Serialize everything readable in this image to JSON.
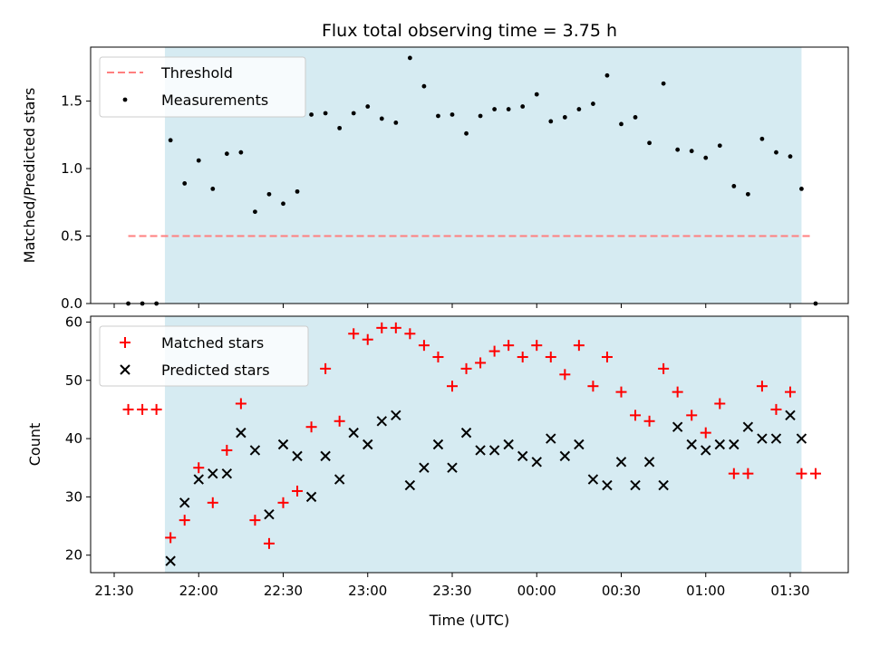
{
  "chart_data": [
    {
      "type": "scatter",
      "title": "Flux total observing time = 3.75 h",
      "xlabel": "",
      "ylabel": "Matched/Predicted stars",
      "ylim": [
        0,
        1.9
      ],
      "yticks": [
        "0.0",
        "0.5",
        "1.0",
        "1.5"
      ],
      "ytick_values": [
        0,
        0.5,
        1.0,
        1.5
      ],
      "legend_position": "top-left",
      "shaded_region": {
        "x_start": "21:48",
        "x_end": "01:34",
        "color": "#add8e6"
      },
      "threshold": {
        "name": "Threshold",
        "value": 0.5,
        "x_start": "21:35",
        "x_end": "01:38",
        "color": "#ff7f7f"
      },
      "series": [
        {
          "name": "Measurements",
          "color": "#000000",
          "x": [
            "21:35",
            "21:40",
            "21:45",
            "21:50",
            "21:55",
            "22:00",
            "22:05",
            "22:10",
            "22:15",
            "22:20",
            "22:25",
            "22:30",
            "22:35",
            "22:40",
            "22:45",
            "22:50",
            "22:55",
            "23:00",
            "23:05",
            "23:10",
            "23:15",
            "23:20",
            "23:25",
            "23:30",
            "23:35",
            "23:40",
            "23:45",
            "23:50",
            "23:55",
            "00:00",
            "00:05",
            "00:10",
            "00:15",
            "00:20",
            "00:25",
            "00:30",
            "00:35",
            "00:40",
            "00:45",
            "00:50",
            "00:55",
            "01:00",
            "01:05",
            "01:10",
            "01:15",
            "01:20",
            "01:25",
            "01:30",
            "01:34",
            "01:39"
          ],
          "y": [
            0,
            0,
            0,
            1.21,
            0.89,
            1.06,
            0.85,
            1.11,
            1.12,
            0.68,
            0.81,
            0.74,
            0.83,
            1.4,
            1.41,
            1.3,
            1.41,
            1.46,
            1.37,
            1.34,
            1.82,
            1.61,
            1.39,
            1.4,
            1.26,
            1.39,
            1.44,
            1.44,
            1.46,
            1.55,
            1.35,
            1.38,
            1.44,
            1.48,
            1.69,
            1.33,
            1.38,
            1.19,
            1.63,
            1.14,
            1.13,
            1.08,
            1.17,
            0.87,
            0.81,
            1.22,
            1.12,
            1.09,
            0.85,
            0
          ]
        }
      ]
    },
    {
      "type": "scatter",
      "title": "",
      "xlabel": "Time (UTC)",
      "ylabel": "Count",
      "ylim": [
        17,
        61
      ],
      "yticks": [
        "20",
        "30",
        "40",
        "50",
        "60"
      ],
      "ytick_values": [
        20,
        30,
        40,
        50,
        60
      ],
      "xticks": [
        "21:30",
        "22:00",
        "22:30",
        "23:00",
        "23:30",
        "00:00",
        "00:30",
        "01:00",
        "01:30"
      ],
      "legend_position": "top-left",
      "shaded_region": {
        "x_start": "21:48",
        "x_end": "01:34",
        "color": "#add8e6"
      },
      "series": [
        {
          "name": "Matched stars",
          "marker": "+",
          "color": "#ff0000",
          "x": [
            "21:35",
            "21:40",
            "21:45",
            "21:50",
            "21:55",
            "22:00",
            "22:05",
            "22:10",
            "22:15",
            "22:20",
            "22:25",
            "22:30",
            "22:35",
            "22:40",
            "22:45",
            "22:50",
            "22:55",
            "23:00",
            "23:05",
            "23:10",
            "23:15",
            "23:20",
            "23:25",
            "23:30",
            "23:35",
            "23:40",
            "23:45",
            "23:50",
            "23:55",
            "00:00",
            "00:05",
            "00:10",
            "00:15",
            "00:20",
            "00:25",
            "00:30",
            "00:35",
            "00:40",
            "00:45",
            "00:50",
            "00:55",
            "01:00",
            "01:05",
            "01:10",
            "01:15",
            "01:20",
            "01:25",
            "01:30",
            "01:34",
            "01:39"
          ],
          "y": [
            45,
            45,
            45,
            23,
            26,
            35,
            29,
            38,
            46,
            26,
            22,
            29,
            31,
            42,
            52,
            43,
            58,
            57,
            59,
            59,
            58,
            56,
            54,
            49,
            52,
            53,
            55,
            56,
            54,
            56,
            54,
            51,
            56,
            49,
            54,
            48,
            44,
            43,
            52,
            48,
            44,
            41,
            46,
            34,
            34,
            49,
            45,
            48,
            34,
            34
          ]
        },
        {
          "name": "Predicted stars",
          "marker": "x",
          "color": "#000000",
          "x": [
            "21:50",
            "21:55",
            "22:00",
            "22:05",
            "22:10",
            "22:15",
            "22:20",
            "22:25",
            "22:30",
            "22:35",
            "22:40",
            "22:45",
            "22:50",
            "22:55",
            "23:00",
            "23:05",
            "23:10",
            "23:15",
            "23:20",
            "23:25",
            "23:30",
            "23:35",
            "23:40",
            "23:45",
            "23:50",
            "23:55",
            "00:00",
            "00:05",
            "00:10",
            "00:15",
            "00:20",
            "00:25",
            "00:30",
            "00:35",
            "00:40",
            "00:45",
            "00:50",
            "00:55",
            "01:00",
            "01:05",
            "01:10",
            "01:15",
            "01:20",
            "01:25",
            "01:30",
            "01:34"
          ],
          "y": [
            19,
            29,
            33,
            34,
            34,
            41,
            38,
            27,
            39,
            37,
            30,
            37,
            33,
            41,
            39,
            43,
            44,
            32,
            35,
            39,
            35,
            41,
            38,
            38,
            39,
            37,
            36,
            40,
            37,
            39,
            33,
            32,
            36,
            32,
            36,
            32,
            42,
            39,
            38,
            39,
            39,
            42,
            40,
            40,
            44,
            40
          ]
        }
      ]
    }
  ]
}
